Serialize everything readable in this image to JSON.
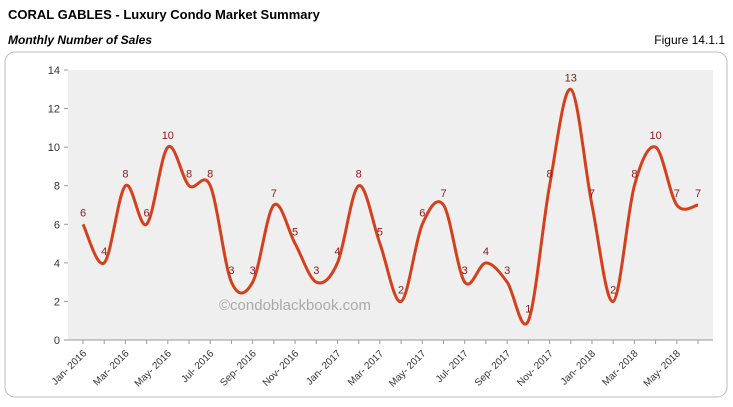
{
  "header": {
    "title": "CORAL GABLES - Luxury Condo Market Summary",
    "subtitle": "Monthly Number of Sales",
    "figure": "Figure 14.1.1"
  },
  "chart_data": {
    "type": "line",
    "watermark": "©condoblackbook.com",
    "categories": [
      "Jan- 2016",
      null,
      "Mar- 2016",
      null,
      "May- 2016",
      null,
      "Jul- 2016",
      null,
      "Sep- 2016",
      null,
      "Nov- 2016",
      null,
      "Jan- 2017",
      null,
      "Mar- 2017",
      null,
      "May- 2017",
      null,
      "Jul- 2017",
      null,
      "Sep- 2017",
      null,
      "Nov- 2017",
      null,
      "Jan- 2018",
      null,
      "Mar- 2018",
      null,
      "May- 2018",
      null
    ],
    "series": [
      {
        "name": "Monthly Number of Sales",
        "color": "#d5401c",
        "values": [
          6,
          4,
          8,
          6,
          10,
          8,
          8,
          3,
          3,
          7,
          5,
          3,
          4,
          8,
          5,
          2,
          6,
          7,
          3,
          4,
          3,
          1,
          8,
          13,
          7,
          2,
          8,
          10,
          7,
          7
        ]
      }
    ],
    "ylim": [
      0,
      14
    ],
    "yticks": [
      0,
      2,
      4,
      6,
      8,
      10,
      12,
      14
    ],
    "grid": false,
    "smooth": true
  }
}
